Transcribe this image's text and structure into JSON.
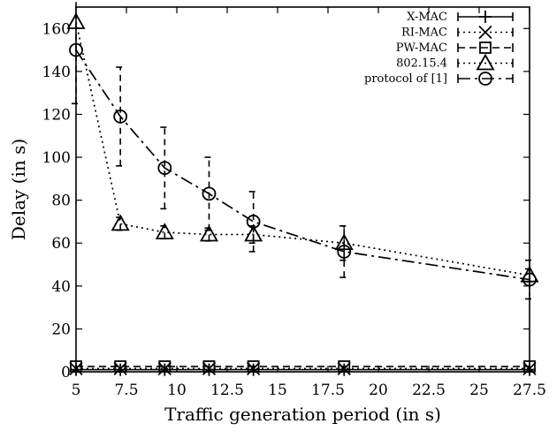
{
  "chart_data": {
    "type": "line",
    "xlabel": "Traffic generation period (in s)",
    "ylabel": "Delay (in s)",
    "xlim": [
      5,
      27.5
    ],
    "ylim": [
      0,
      170
    ],
    "xticks": [
      5,
      7.5,
      10,
      12.5,
      15,
      17.5,
      20,
      22.5,
      25,
      27.5
    ],
    "xtick_labels": [
      "5",
      "7.5",
      "10",
      "12.5",
      "15",
      "17.5",
      "20",
      "22.5",
      "25",
      "27.5"
    ],
    "yticks": [
      0,
      20,
      40,
      60,
      80,
      100,
      120,
      140,
      160
    ],
    "ytick_labels": [
      "0",
      "20",
      "40",
      "60",
      "80",
      "100",
      "120",
      "140",
      "160"
    ],
    "grid": false,
    "legend_position": "top-right",
    "series": [
      {
        "name": "X-MAC",
        "marker": "plus",
        "line_style": "solid",
        "x": [
          5,
          7.2,
          9.4,
          11.6,
          13.8,
          18.3,
          27.5
        ],
        "y": [
          1.0,
          1.0,
          1.0,
          1.0,
          1.0,
          1.0,
          1.0
        ],
        "err": [
          0,
          0,
          0,
          0,
          0,
          0,
          0
        ]
      },
      {
        "name": "RI-MAC",
        "marker": "cross",
        "line_style": "dotted",
        "x": [
          5,
          7.2,
          9.4,
          11.6,
          13.8,
          18.3,
          27.5
        ],
        "y": [
          1.5,
          1.5,
          1.5,
          1.5,
          1.5,
          1.5,
          1.5
        ],
        "err": [
          0,
          0,
          0,
          0,
          0,
          0,
          0
        ]
      },
      {
        "name": "PW-MAC",
        "marker": "square",
        "line_style": "dashed",
        "x": [
          5,
          7.2,
          9.4,
          11.6,
          13.8,
          18.3,
          27.5
        ],
        "y": [
          2.5,
          2.5,
          2.5,
          2.5,
          2.5,
          2.5,
          2.5
        ],
        "err": [
          0,
          0,
          0,
          0,
          0,
          0,
          0
        ]
      },
      {
        "name": "802.15.4",
        "marker": "triangle",
        "line_style": "dotted",
        "x": [
          5,
          7.2,
          9.4,
          11.6,
          13.8,
          18.3,
          27.5
        ],
        "y": [
          163,
          69,
          65,
          64,
          64,
          60,
          45
        ],
        "err": [
          0,
          3,
          3,
          3,
          4,
          8,
          3
        ]
      },
      {
        "name": "protocol of [1]",
        "marker": "circle",
        "line_style": "long-dash",
        "x": [
          5,
          7.2,
          9.4,
          11.6,
          13.8,
          18.3,
          27.5
        ],
        "y": [
          150,
          119,
          95,
          83,
          70,
          56,
          43
        ],
        "err": [
          25,
          23,
          19,
          17,
          14,
          12,
          9
        ]
      }
    ]
  }
}
